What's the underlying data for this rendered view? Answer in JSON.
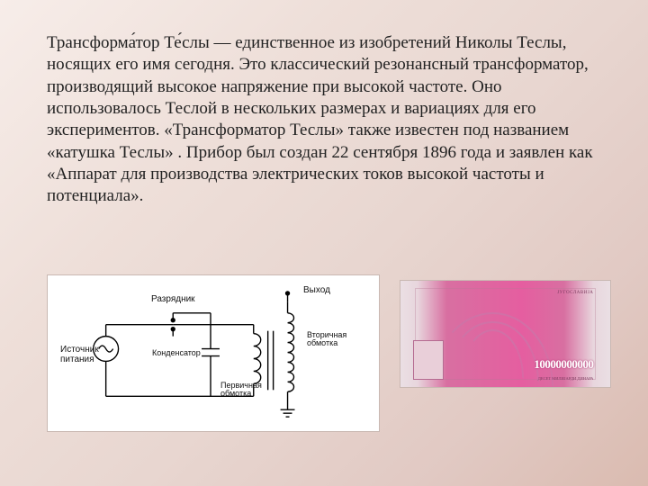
{
  "slide": {
    "background_gradient": [
      "#f7ede9",
      "#eedfd9",
      "#e8d6d0",
      "#e1c9c3",
      "#dabbb0"
    ]
  },
  "paragraph": {
    "text": "Трансформа́тор Те́слы — единственное из изобретений Николы Теслы, носящих его имя сегодня. Это классический резонансный трансформатор, производящий высокое напряжение при высокой частоте. Оно использовалось Теслой в нескольких размерах и вариациях для его экспериментов. «Трансформатор Теслы» также известен под названием «катушка Теслы» . Прибор был создан 22 сентября 1896 года и заявлен как «Аппарат для производства электрических токов высокой частоты и потенциала».",
    "font_family": "Times New Roman",
    "font_size_pt": 14,
    "color": "#222222"
  },
  "schematic": {
    "type": "diagram",
    "background_color": "#ffffff",
    "stroke_color": "#000000",
    "stroke_width": 1.4,
    "label_font_family": "Arial",
    "label_color": "#111111",
    "labels": {
      "power_source": "Источник\nпитания",
      "spark_gap": "Разрядник",
      "capacitor": "Конденсатор",
      "primary_coil": "Первичная\nобмотка",
      "output": "Выход",
      "secondary_coil": "Вторичная\nобмотка"
    },
    "label_fontsize": 10,
    "label_fontsize_sm": 9
  },
  "banknote": {
    "type": "infographic",
    "denomination": "10000000000",
    "top_text": "ЈУГОСЛАВИЈА",
    "bottom_text": "ДЕСЕТ МИЛИЈАРДИ ДИНАРА",
    "base_colors": [
      "#eadfe4",
      "#d86fa1",
      "#e55ea0"
    ],
    "denom_color": "#ffffff",
    "text_color": "#7b3a5e"
  }
}
